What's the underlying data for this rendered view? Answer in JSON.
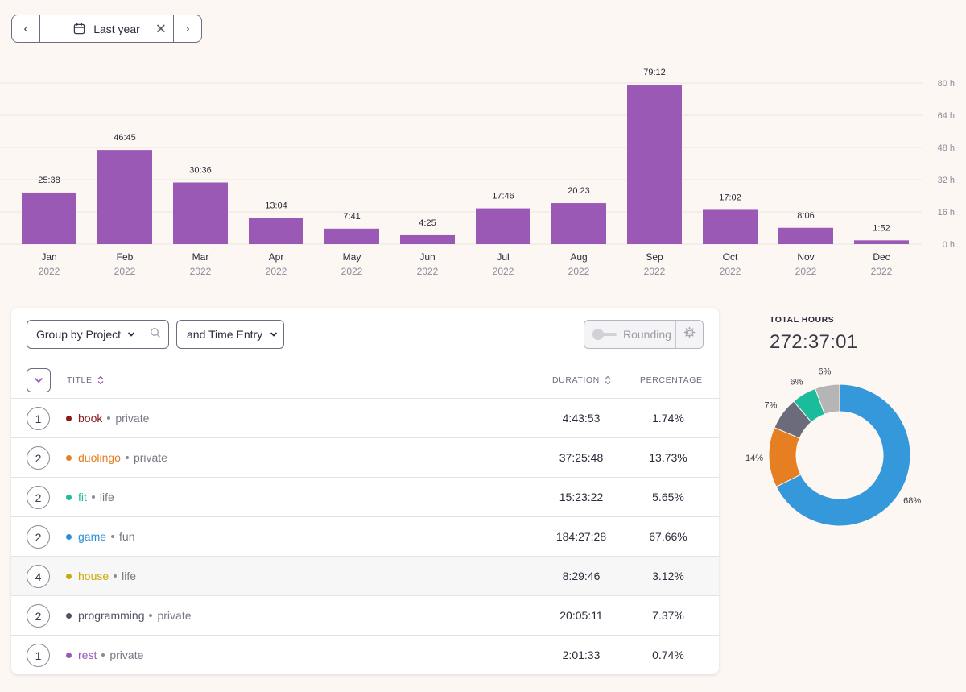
{
  "date_range": {
    "label": "Last year",
    "prev_label": "‹",
    "next_label": "›",
    "clear_label": "✕"
  },
  "chart_data": {
    "type": "bar",
    "categories": [
      "Jan",
      "Feb",
      "Mar",
      "Apr",
      "May",
      "Jun",
      "Jul",
      "Aug",
      "Sep",
      "Oct",
      "Nov",
      "Dec"
    ],
    "year": "2022",
    "values_hours": [
      25.63,
      46.75,
      30.6,
      13.07,
      7.68,
      4.42,
      17.77,
      20.38,
      79.2,
      17.03,
      8.1,
      1.87
    ],
    "value_labels": [
      "25:38",
      "46:45",
      "30:36",
      "13:04",
      "7:41",
      "4:25",
      "17:46",
      "20:23",
      "79:12",
      "17:02",
      "8:06",
      "1:52"
    ],
    "y_ticks": [
      "0 h",
      "16 h",
      "32 h",
      "48 h",
      "64 h",
      "80 h"
    ],
    "ylim": [
      0,
      80
    ],
    "bar_color": "#9b59b6",
    "grid": true
  },
  "toolbar": {
    "group_by_label": "Group by Project",
    "subgroup_label": "and Time Entry",
    "rounding_label": "Rounding"
  },
  "table": {
    "headers": {
      "title": "TITLE",
      "duration": "DURATION",
      "percentage": "PERCENTAGE"
    },
    "rows": [
      {
        "count": "1",
        "project": "book",
        "client": "private",
        "color": "#8b1a1a",
        "duration": "4:43:53",
        "percentage": "1.74%"
      },
      {
        "count": "2",
        "project": "duolingo",
        "client": "private",
        "color": "#e67e22",
        "duration": "37:25:48",
        "percentage": "13.73%"
      },
      {
        "count": "2",
        "project": "fit",
        "client": "life",
        "color": "#1abc9c",
        "duration": "15:23:22",
        "percentage": "5.65%"
      },
      {
        "count": "2",
        "project": "game",
        "client": "fun",
        "color": "#2d8fd8",
        "duration": "184:27:28",
        "percentage": "67.66%"
      },
      {
        "count": "4",
        "project": "house",
        "client": "life",
        "color": "#c9ab0a",
        "duration": "8:29:46",
        "percentage": "3.12%"
      },
      {
        "count": "2",
        "project": "programming",
        "client": "private",
        "color": "#525266",
        "duration": "20:05:11",
        "percentage": "7.37%"
      },
      {
        "count": "1",
        "project": "rest",
        "client": "private",
        "color": "#9b59b6",
        "duration": "2:01:33",
        "percentage": "0.74%"
      }
    ]
  },
  "summary": {
    "label": "TOTAL HOURS",
    "total": "272:37:01"
  },
  "donut_data": {
    "type": "pie",
    "slices": [
      {
        "label": "68%",
        "value": 67.66,
        "color": "#3498db"
      },
      {
        "label": "14%",
        "value": 13.73,
        "color": "#e67e22"
      },
      {
        "label": "7%",
        "value": 7.37,
        "color": "#6b6b7b"
      },
      {
        "label": "6%",
        "value": 5.65,
        "color": "#1abc9c"
      },
      {
        "label": "6%",
        "value": 5.6,
        "color": "#b5b5b5"
      }
    ]
  }
}
